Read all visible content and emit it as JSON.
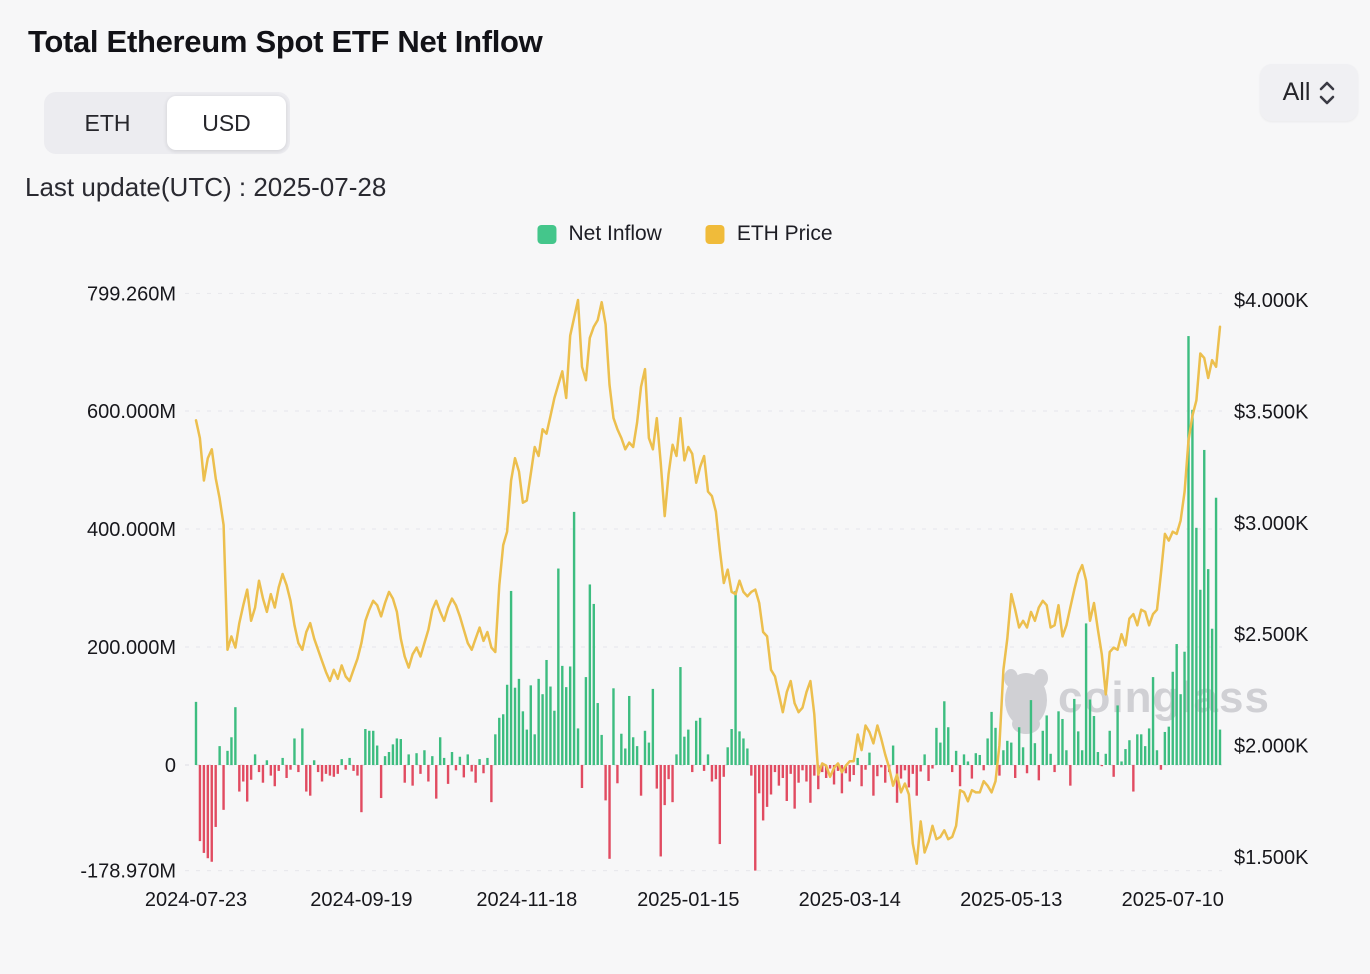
{
  "header": {
    "title": "Total Ethereum Spot ETF Net Inflow",
    "unit_toggle": {
      "options": [
        "ETH",
        "USD"
      ],
      "selected": "USD"
    },
    "range_select": {
      "value": "All"
    },
    "last_update": "Last update(UTC) : 2025-07-28"
  },
  "legend": [
    {
      "label": "Net Inflow",
      "color": "#44c68b"
    },
    {
      "label": "ETH Price",
      "color": "#f0bb3a"
    }
  ],
  "watermark": {
    "text": "coinglass",
    "color": "#c3c3c9"
  },
  "chart_data": {
    "type": "combo_bar_line",
    "title": "Total Ethereum Spot ETF Net Inflow",
    "x_axis": {
      "start": "2024-07-23",
      "end": "2025-07-28",
      "ticks": [
        {
          "index": 0,
          "label": "2024-07-23"
        },
        {
          "index": 42,
          "label": "2024-09-19"
        },
        {
          "index": 84,
          "label": "2024-11-18"
        },
        {
          "index": 125,
          "label": "2025-01-15"
        },
        {
          "index": 166,
          "label": "2025-03-14"
        },
        {
          "index": 207,
          "label": "2025-05-13"
        },
        {
          "index": 248,
          "label": "2025-07-10"
        }
      ]
    },
    "left_axis": {
      "title": "Net Inflow (USD, millions)",
      "range": [
        -178.97,
        799.26
      ],
      "ticks": [
        {
          "value": 799.26,
          "label": "799.260M"
        },
        {
          "value": 600,
          "label": "600.000M"
        },
        {
          "value": 400,
          "label": "400.000M"
        },
        {
          "value": 200,
          "label": "200.000M"
        },
        {
          "value": 0,
          "label": "0"
        },
        {
          "value": -178.97,
          "label": "-178.970M"
        }
      ]
    },
    "right_axis": {
      "title": "ETH Price (USD)",
      "range": [
        1500,
        4000
      ],
      "ticks": [
        {
          "value": 4000,
          "label": "$4.000K"
        },
        {
          "value": 3500,
          "label": "$3.500K"
        },
        {
          "value": 3000,
          "label": "$3.000K"
        },
        {
          "value": 2500,
          "label": "$2.500K"
        },
        {
          "value": 2000,
          "label": "$2.000K"
        },
        {
          "value": 1500,
          "label": "$1.500K"
        }
      ]
    },
    "series": [
      {
        "name": "Net Inflow",
        "type": "bar",
        "unit": "million USD",
        "positive_color": "#3dbd80",
        "negative_color": "#e14b61",
        "values": [
          107,
          -129,
          -149,
          -158,
          -164,
          -105,
          32,
          -76,
          24,
          47,
          98,
          -45,
          -28,
          -62,
          -25,
          18,
          -12,
          -30,
          8,
          -18,
          -36,
          -10,
          12,
          -22,
          -8,
          45,
          -12,
          62,
          -45,
          -52,
          8,
          -12,
          -28,
          -15,
          -18,
          -20,
          -15,
          10,
          -8,
          12,
          -10,
          -18,
          -80,
          61,
          58,
          58,
          33,
          -56,
          15,
          22,
          35,
          45,
          44,
          -30,
          18,
          -35,
          20,
          -15,
          25,
          -28,
          15,
          -57,
          47,
          12,
          -32,
          22,
          -9,
          14,
          -21,
          18,
          -11,
          -30,
          10,
          -14,
          12,
          -63,
          52,
          80,
          86,
          136,
          295,
          131,
          146,
          91,
          60,
          135,
          52,
          146,
          120,
          178,
          133,
          92,
          333,
          168,
          132,
          167,
          429,
          62,
          -39,
          149,
          306,
          273,
          105,
          51,
          -60,
          -159,
          130,
          -31,
          53,
          28,
          117,
          47,
          32,
          -52,
          58,
          38,
          129,
          -40,
          -155,
          -68,
          -24,
          -63,
          18,
          166,
          48,
          60,
          -12,
          75,
          80,
          -10,
          18,
          -28,
          -24,
          -134,
          -20,
          30,
          61,
          295,
          57,
          45,
          28,
          -18,
          -178.97,
          -48,
          -94,
          -71,
          -50,
          -12,
          -35,
          -22,
          -61,
          -15,
          -74,
          -30,
          -9,
          -28,
          -64,
          -18,
          -41,
          -12,
          -22,
          -6,
          -33,
          -10,
          -48,
          -14,
          -28,
          -17,
          12,
          -36,
          -8,
          21,
          -52,
          -19,
          -4,
          -30,
          -12,
          33,
          -64,
          -23,
          -9,
          -38,
          -15,
          -52,
          -11,
          18,
          -27,
          -6,
          63,
          38,
          108,
          64,
          -12,
          24,
          -36,
          18,
          6,
          -23,
          20,
          17,
          -9,
          45,
          90,
          63,
          -18,
          25,
          41,
          38,
          -22,
          64,
          30,
          -14,
          110,
          37,
          -26,
          58,
          84,
          19,
          -12,
          91,
          78,
          25,
          -35,
          112,
          57,
          25,
          240,
          111,
          83,
          22,
          -2,
          19,
          58,
          -20,
          101,
          6,
          27,
          42,
          -45,
          52,
          52,
          32,
          62,
          149,
          25,
          -8,
          56,
          65,
          158,
          205,
          120,
          192,
          727,
          602,
          402,
          297,
          534,
          332,
          231,
          453,
          60
        ]
      },
      {
        "name": "ETH Price",
        "type": "line",
        "unit": "USD",
        "color": "#ecbf4e",
        "values": [
          3460,
          3380,
          3190,
          3290,
          3330,
          3200,
          3110,
          2990,
          2430,
          2490,
          2440,
          2550,
          2630,
          2700,
          2560,
          2620,
          2740,
          2660,
          2600,
          2680,
          2620,
          2710,
          2770,
          2720,
          2650,
          2540,
          2460,
          2430,
          2510,
          2550,
          2480,
          2430,
          2380,
          2330,
          2290,
          2340,
          2300,
          2360,
          2310,
          2290,
          2340,
          2390,
          2460,
          2560,
          2610,
          2650,
          2630,
          2580,
          2640,
          2690,
          2660,
          2600,
          2480,
          2400,
          2350,
          2410,
          2440,
          2400,
          2460,
          2520,
          2610,
          2650,
          2600,
          2560,
          2620,
          2660,
          2630,
          2580,
          2520,
          2460,
          2430,
          2480,
          2530,
          2470,
          2510,
          2440,
          2420,
          2720,
          2900,
          2960,
          3190,
          3290,
          3230,
          3090,
          3100,
          3220,
          3340,
          3300,
          3420,
          3400,
          3480,
          3560,
          3620,
          3680,
          3560,
          3840,
          3920,
          4000,
          3700,
          3640,
          3830,
          3880,
          3910,
          3990,
          3890,
          3620,
          3470,
          3420,
          3380,
          3330,
          3360,
          3340,
          3450,
          3610,
          3690,
          3380,
          3330,
          3470,
          3270,
          3030,
          3220,
          3350,
          3300,
          3470,
          3280,
          3340,
          3310,
          3180,
          3250,
          3300,
          3140,
          3120,
          3050,
          2880,
          2730,
          2790,
          2690,
          2680,
          2740,
          2690,
          2670,
          2690,
          2700,
          2640,
          2510,
          2490,
          2340,
          2310,
          2230,
          2150,
          2240,
          2290,
          2190,
          2150,
          2170,
          2240,
          2290,
          2140,
          1870,
          1920,
          1910,
          1860,
          1900,
          1920,
          1880,
          1910,
          1930,
          1930,
          2050,
          1980,
          2090,
          2060,
          2010,
          2090,
          2030,
          1960,
          1900,
          1820,
          1870,
          1790,
          1830,
          1780,
          1560,
          1470,
          1660,
          1520,
          1570,
          1640,
          1580,
          1590,
          1620,
          1580,
          1590,
          1640,
          1800,
          1790,
          1750,
          1800,
          1790,
          1790,
          1840,
          1820,
          1790,
          1840,
          2000,
          2340,
          2480,
          2680,
          2610,
          2530,
          2560,
          2530,
          2600,
          2560,
          2620,
          2650,
          2630,
          2530,
          2540,
          2630,
          2490,
          2540,
          2620,
          2700,
          2770,
          2810,
          2740,
          2560,
          2640,
          2520,
          2410,
          2230,
          2420,
          2440,
          2430,
          2500,
          2450,
          2570,
          2590,
          2540,
          2610,
          2600,
          2540,
          2590,
          2610,
          2770,
          2950,
          2920,
          2960,
          2950,
          3010,
          3140,
          3370,
          3480,
          3550,
          3760,
          3740,
          3650,
          3730,
          3700,
          3880
        ]
      }
    ]
  }
}
